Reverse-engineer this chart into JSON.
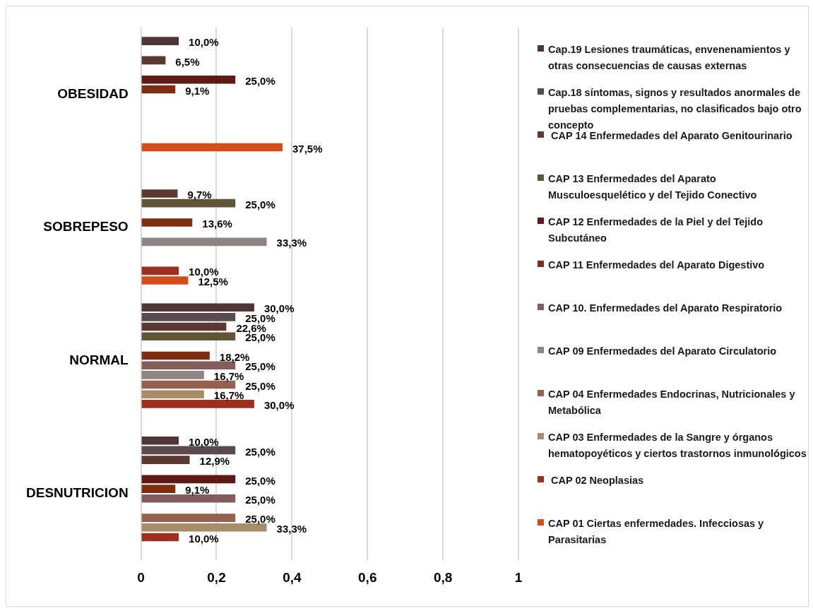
{
  "chart_data": {
    "type": "bar",
    "orientation": "horizontal",
    "categories": [
      "OBESIDAD",
      "SOBREPESO",
      "NORMAL",
      "DESNUTRICION"
    ],
    "xlim": [
      0,
      1
    ],
    "xticks": [
      0,
      {
        "value": 0.2,
        "label": "0,2"
      },
      {
        "value": 0.4,
        "label": "0,4"
      },
      {
        "value": 0.6,
        "label": "0,6"
      },
      {
        "value": 0.8,
        "label": "0,8"
      },
      1
    ],
    "grid": "x",
    "legend": "right",
    "series": [
      {
        "name": "Cap.19 Lesiones traumáticas, envenenamientos y otras consecuencias de causas externas",
        "color": "#4f3538",
        "values": [
          0.1,
          null,
          0.3,
          0.1
        ],
        "value_labels": [
          "10,0%",
          null,
          "30,0%",
          "10,0%"
        ]
      },
      {
        "name": "Cap.18 síntomas, signos y resultados anormales de pruebas complementarias, no clasificados bajo otro concepto",
        "color": "#5a4b4e",
        "values": [
          null,
          null,
          0.25,
          0.25
        ],
        "value_labels": [
          null,
          null,
          "25,0%",
          "25,0%"
        ]
      },
      {
        "name": " CAP 14 Enfermedades del Aparato Genitourinario",
        "color": "#5b3830",
        "values": [
          0.065,
          0.097,
          0.226,
          0.129
        ],
        "value_labels": [
          "6,5%",
          "9,7%",
          "22,6%",
          "12,9%"
        ]
      },
      {
        "name": "CAP 13 Enfermedades del Aparato Musculoesquelético y del Tejido Conectivo",
        "color": "#615538",
        "values": [
          null,
          0.25,
          0.25,
          null
        ],
        "value_labels": [
          null,
          "25,0%",
          "25,0%",
          null
        ]
      },
      {
        "name": "CAP 12 Enfermedades de la Piel y del Tejido Subcutáneo",
        "color": "#5e1a14",
        "values": [
          0.25,
          null,
          null,
          0.25
        ],
        "value_labels": [
          "25,0%",
          null,
          null,
          "25,0%"
        ]
      },
      {
        "name": "CAP 11 Enfermedades del Aparato Digestivo",
        "color": "#7e2c12",
        "values": [
          0.091,
          0.136,
          0.182,
          0.091
        ],
        "value_labels": [
          "9,1%",
          "13,6%",
          "18,2%",
          "9,1%"
        ]
      },
      {
        "name": "CAP 10. Enfermedades del Aparato Respiratorio",
        "color": "#855c5c",
        "values": [
          null,
          null,
          0.25,
          0.25
        ],
        "value_labels": [
          null,
          null,
          "25,0%",
          "25,0%"
        ]
      },
      {
        "name": "CAP 09 Enfermedades del Aparato Circulatorio",
        "color": "#8e8484",
        "values": [
          null,
          0.333,
          0.167,
          null
        ],
        "value_labels": [
          null,
          "33,3%",
          "16,7%",
          null
        ]
      },
      {
        "name": "CAP 04 Enfermedades Endocrinas, Nutricionales y Metabólica",
        "color": "#956050",
        "values": [
          null,
          null,
          0.25,
          0.25
        ],
        "value_labels": [
          null,
          null,
          "25,0%",
          "25,0%"
        ]
      },
      {
        "name": "CAP 03 Enfermedades de la Sangre y órganos hematopoyéticos y ciertos trastornos inmunológicos",
        "color": "#a58d6b",
        "values": [
          null,
          null,
          0.167,
          0.333
        ],
        "value_labels": [
          null,
          null,
          "16,7%",
          "33,3%"
        ]
      },
      {
        "name": " CAP 02 Neoplasias",
        "color": "#9c2f20",
        "values": [
          null,
          0.1,
          0.3,
          0.1
        ],
        "value_labels": [
          null,
          "10,0%",
          "30,0%",
          "10,0%"
        ]
      },
      {
        "name": "CAP 01 Ciertas enfermedades. Infecciosas y Parasitarias",
        "color": "#d64d1c",
        "values": [
          0.375,
          0.125,
          null,
          null
        ],
        "value_labels": [
          "37,5%",
          "12,5%",
          null,
          null
        ]
      }
    ]
  }
}
